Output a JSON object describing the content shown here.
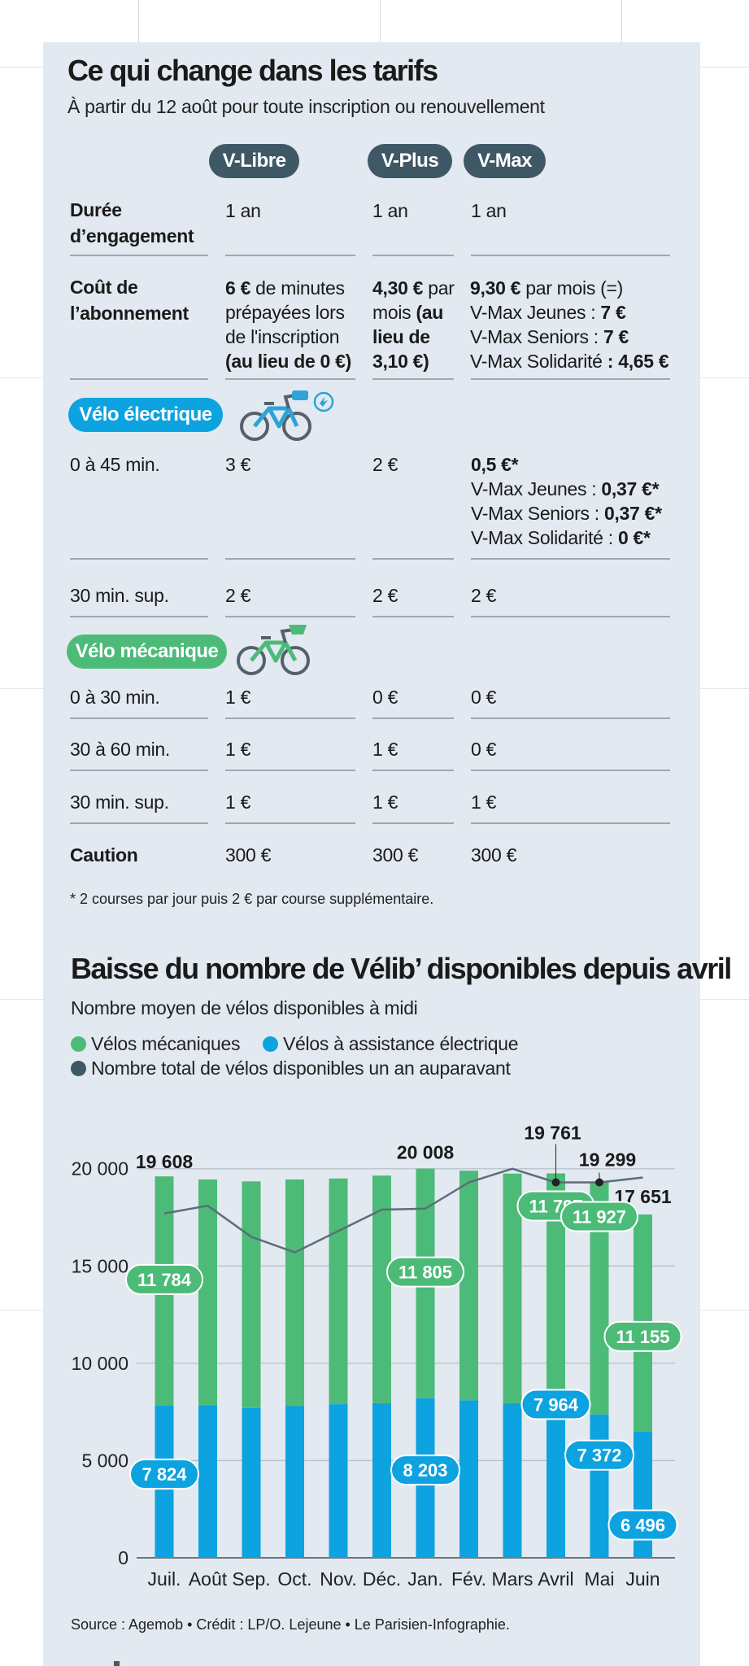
{
  "colors": {
    "panel": "#e3e9f0",
    "dark": "#3e5866",
    "blue": "#0da2e0",
    "green": "#4cbb78",
    "rule": "#9fa8b1"
  },
  "tarifs": {
    "title": "Ce qui change dans les tarifs",
    "subtitle": "À partir du 12 août pour toute inscription ou renouvellement",
    "plans": [
      "V-Libre",
      "V-Plus",
      "V-Max"
    ],
    "engagement": {
      "label": "Durée d’engagement",
      "values": [
        "1 an",
        "1 an",
        "1 an"
      ]
    },
    "abonnement": {
      "label": "Coût de l’abonnement",
      "vlibre": {
        "amount": "6 €",
        "text": " de minutes prépayées lors de l'inscription ",
        "old": "(au lieu de 0 €)"
      },
      "vplus": {
        "amount": "4,30 €",
        "text": " par mois ",
        "old": "(au lieu de 3,10 €)"
      },
      "vmax": {
        "line1_amount": "9,30 €",
        "line1_text": " par mois (=)",
        "jeunes_label": "V-Max Jeunes : ",
        "jeunes_value": "7 €",
        "seniors_label": "V-Max Seniors : ",
        "seniors_value": "7 €",
        "solidarite_label": "V-Max Solidarité ",
        "solidarite_value": ": 4,65 €"
      }
    },
    "electrique": {
      "label": "Vélo électrique",
      "icon": "electric-bike-icon",
      "row1": {
        "label": "0 à 45 min.",
        "vlibre": "3 €",
        "vplus": "2 €",
        "vmax_main": "0,5 €*",
        "vmax_jeunes_label": "V-Max Jeunes : ",
        "vmax_jeunes_value": "0,37 €*",
        "vmax_seniors_label": "V-Max Seniors : ",
        "vmax_seniors_value": "0,37 €*",
        "vmax_solidarite_label": "V-Max Solidarité : ",
        "vmax_solidarite_value": "0 €*"
      },
      "row2": {
        "label": "30 min. sup.",
        "values": [
          "2 €",
          "2 €",
          "2 €"
        ]
      }
    },
    "mecanique": {
      "label": "Vélo mécanique",
      "icon": "mechanical-bike-icon",
      "rows": [
        {
          "label": "0 à 30 min.",
          "values": [
            "1 €",
            "0 €",
            "0 €"
          ]
        },
        {
          "label": "30 à 60 min.",
          "values": [
            "1 €",
            "1 €",
            "0 €"
          ]
        },
        {
          "label": "30 min. sup.",
          "values": [
            "1 €",
            "1 €",
            "1 €"
          ]
        }
      ]
    },
    "caution": {
      "label": "Caution",
      "values": [
        "300 €",
        "300 €",
        "300 €"
      ]
    },
    "footnote": "* 2 courses par jour puis 2 € par course supplémentaire."
  },
  "chart": {
    "title": "Baisse du nombre de Vélib’ disponibles depuis avril",
    "subtitle": "Nombre moyen de vélos disponibles à midi",
    "legend": [
      {
        "label": "Vélos mécaniques",
        "color": "#4cbb78"
      },
      {
        "label": "Vélos à assistance électrique",
        "color": "#0da2e0"
      },
      {
        "label": "Nombre total de vélos disponibles un an auparavant",
        "color": "#3e5866"
      }
    ],
    "source": "Source : Agemob • Crédit : LP/O. Lejeune • Le Parisien-Infographie."
  },
  "chart_data": {
    "type": "bar",
    "stacked": true,
    "categories": [
      "Juil.",
      "Août",
      "Sep.",
      "Oct.",
      "Nov.",
      "Déc.",
      "Jan.",
      "Fév.",
      "Mars",
      "Avril",
      "Mai",
      "Juin"
    ],
    "series": [
      {
        "name": "Vélos à assistance électrique",
        "values": [
          7824,
          7850,
          7700,
          7800,
          7900,
          7950,
          8203,
          8100,
          7950,
          7964,
          7372,
          6496
        ]
      },
      {
        "name": "Vélos mécaniques",
        "values": [
          11784,
          11600,
          11650,
          11650,
          11600,
          11700,
          11805,
          11800,
          11800,
          11797,
          11927,
          11155
        ]
      }
    ],
    "line": {
      "name": "Nombre total de vélos disponibles un an auparavant",
      "values": [
        17700,
        18100,
        16500,
        15700,
        16800,
        17900,
        17950,
        19300,
        20000,
        19300,
        19300,
        19550
      ]
    },
    "totals": [
      19608,
      19450,
      19350,
      19450,
      19500,
      19650,
      20008,
      19900,
      19750,
      19761,
      19299,
      17651
    ],
    "total_labels": [
      {
        "index": 0,
        "text": "19 608"
      },
      {
        "index": 6,
        "text": "20 008"
      },
      {
        "index": 9,
        "text": "19 761"
      },
      {
        "index": 10,
        "text": "19 299"
      },
      {
        "index": 11,
        "text": "17 651"
      }
    ],
    "bubble_labels": [
      {
        "index": 0,
        "series": 1,
        "text": "11 784"
      },
      {
        "index": 0,
        "series": 0,
        "text": "7 824"
      },
      {
        "index": 6,
        "series": 1,
        "text": "11 805"
      },
      {
        "index": 6,
        "series": 0,
        "text": "8 203"
      },
      {
        "index": 9,
        "series": 1,
        "text": "11 797"
      },
      {
        "index": 9,
        "series": 0,
        "text": "7 964"
      },
      {
        "index": 10,
        "series": 1,
        "text": "11 927"
      },
      {
        "index": 10,
        "series": 0,
        "text": "7 372"
      },
      {
        "index": 11,
        "series": 1,
        "text": "11 155"
      },
      {
        "index": 11,
        "series": 0,
        "text": "6 496"
      }
    ],
    "yticks": [
      0,
      5000,
      10000,
      15000,
      20000
    ],
    "ytick_labels": [
      "0",
      "5 000",
      "10 000",
      "15 000",
      "20 000"
    ],
    "ylim": [
      0,
      21000
    ],
    "grid": true
  }
}
